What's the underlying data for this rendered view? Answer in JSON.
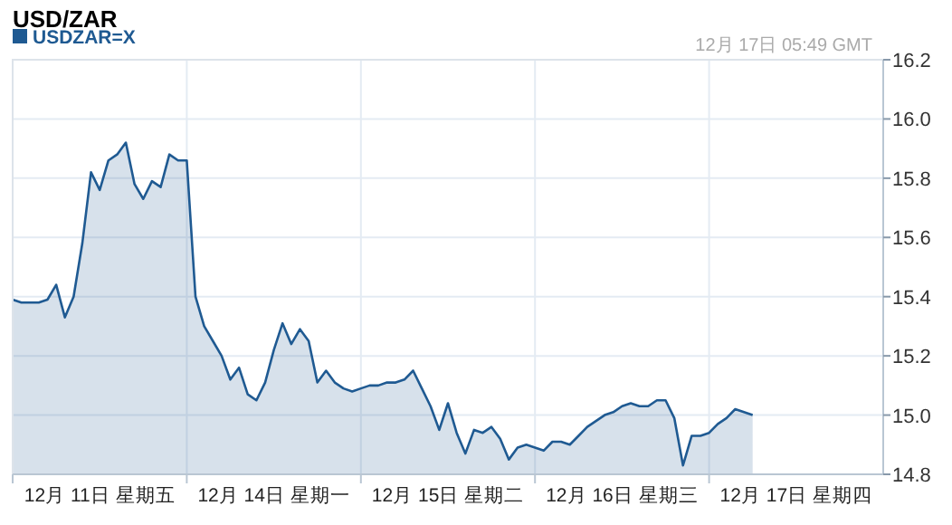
{
  "chart_data": {
    "type": "area",
    "title": "USD/ZAR",
    "annotations": [
      "12月 17日 05:49 GMT"
    ],
    "legend": "top left",
    "grid": true,
    "categories": [
      null,
      null,
      null,
      null,
      null,
      null,
      null,
      null,
      null,
      null,
      "12月 11日 星期五",
      null,
      null,
      null,
      null,
      null,
      null,
      null,
      null,
      null,
      null,
      null,
      null,
      null,
      null,
      null,
      null,
      null,
      null,
      null,
      "12月 14日 星期一",
      null,
      null,
      null,
      null,
      null,
      null,
      null,
      null,
      null,
      null,
      null,
      null,
      null,
      null,
      null,
      null,
      null,
      null,
      null,
      "12月 15日 星期二",
      null,
      null,
      null,
      null,
      null,
      null,
      null,
      null,
      null,
      null,
      null,
      null,
      null,
      null,
      null,
      null,
      null,
      null,
      null,
      "12月 16日 星期三",
      null,
      null,
      null,
      null,
      null,
      null,
      null,
      null,
      null,
      null,
      null,
      null,
      null,
      null,
      null,
      null,
      null,
      null,
      null,
      "12月 17日 星期四",
      null,
      null,
      null,
      null,
      null,
      null,
      null,
      null,
      null
    ],
    "ylim": [
      14.8,
      16.2
    ],
    "yticks": [
      14.8,
      {
        "value": 15,
        "label": "15.0"
      },
      15.2,
      15.4,
      15.6,
      15.8,
      {
        "value": 16,
        "label": "16.0"
      },
      16.2
    ],
    "series": [
      {
        "name": "USDZAR=X",
        "color": "#1f5a92",
        "values": [
          15.39,
          15.38,
          15.38,
          15.38,
          15.39,
          15.44,
          15.33,
          15.4,
          15.58,
          15.82,
          15.76,
          15.86,
          15.88,
          15.92,
          15.78,
          15.73,
          15.79,
          15.77,
          15.88,
          15.86,
          15.86,
          15.4,
          15.3,
          15.25,
          15.2,
          15.12,
          15.16,
          15.07,
          15.05,
          15.11,
          15.22,
          15.31,
          15.24,
          15.29,
          15.25,
          15.11,
          15.15,
          15.11,
          15.09,
          15.08,
          15.09,
          15.1,
          15.1,
          15.11,
          15.11,
          15.12,
          15.15,
          15.09,
          15.03,
          14.95,
          15.04,
          14.94,
          14.87,
          14.95,
          14.94,
          14.96,
          14.92,
          14.85,
          14.89,
          14.9,
          14.89,
          14.88,
          14.91,
          14.91,
          14.9,
          14.93,
          14.96,
          14.98,
          15.0,
          15.01,
          15.03,
          15.04,
          15.03,
          15.03,
          15.05,
          15.05,
          14.99,
          14.83,
          14.93,
          14.93,
          14.94,
          14.97,
          14.99,
          15.02,
          15.01,
          15.0,
          null,
          null,
          null,
          null,
          null,
          null,
          null,
          null,
          null,
          null,
          null,
          null,
          null,
          null
        ]
      }
    ]
  }
}
